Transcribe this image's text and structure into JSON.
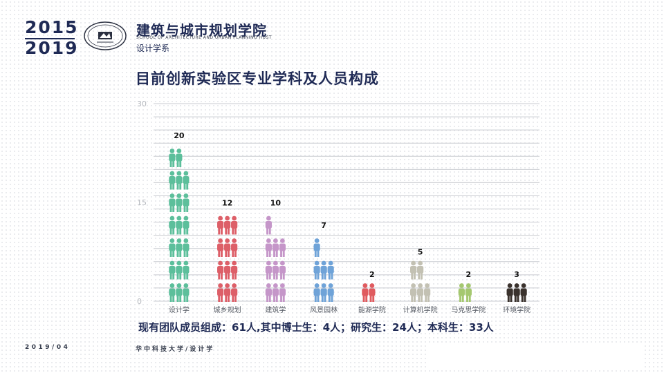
{
  "header": {
    "year_top": "2015",
    "year_bottom": "2019",
    "school_name": "建筑与城市规划学院",
    "school_name_en": "SCHOOL OF ARCHITECTURE AND URBAN PLANNING HUST",
    "department": "设计学系",
    "seal_icon": "university-seal-icon",
    "seal_text": "華中科技大學"
  },
  "page_title": "目前创新实验区专业学科及人员构成",
  "summary": "现有团队成员组成：61人,其中博士生：4人；研究生：24人；本科生：33人",
  "footer": {
    "date": "2019/04",
    "org": "华中科技大学/设计学"
  },
  "chart_data": {
    "type": "bar",
    "style": "pictograph",
    "icon": "person-icon",
    "people_per_icon": 1,
    "title": "",
    "xlabel": "",
    "ylabel": "",
    "ylim": [
      0,
      30
    ],
    "yticks": [
      0,
      15,
      30
    ],
    "grid": true,
    "categories": [
      "设计学",
      "城乡规划",
      "建筑学",
      "风景园林",
      "能源学院",
      "计算机学院",
      "马克思学院",
      "环境学院"
    ],
    "values": [
      20,
      12,
      10,
      7,
      2,
      5,
      2,
      3
    ],
    "colors": [
      "#5cbf9b",
      "#dd5f68",
      "#c596c9",
      "#6fa3d8",
      "#e05b5f",
      "#c3c1b3",
      "#a5c870",
      "#3a322d"
    ]
  }
}
